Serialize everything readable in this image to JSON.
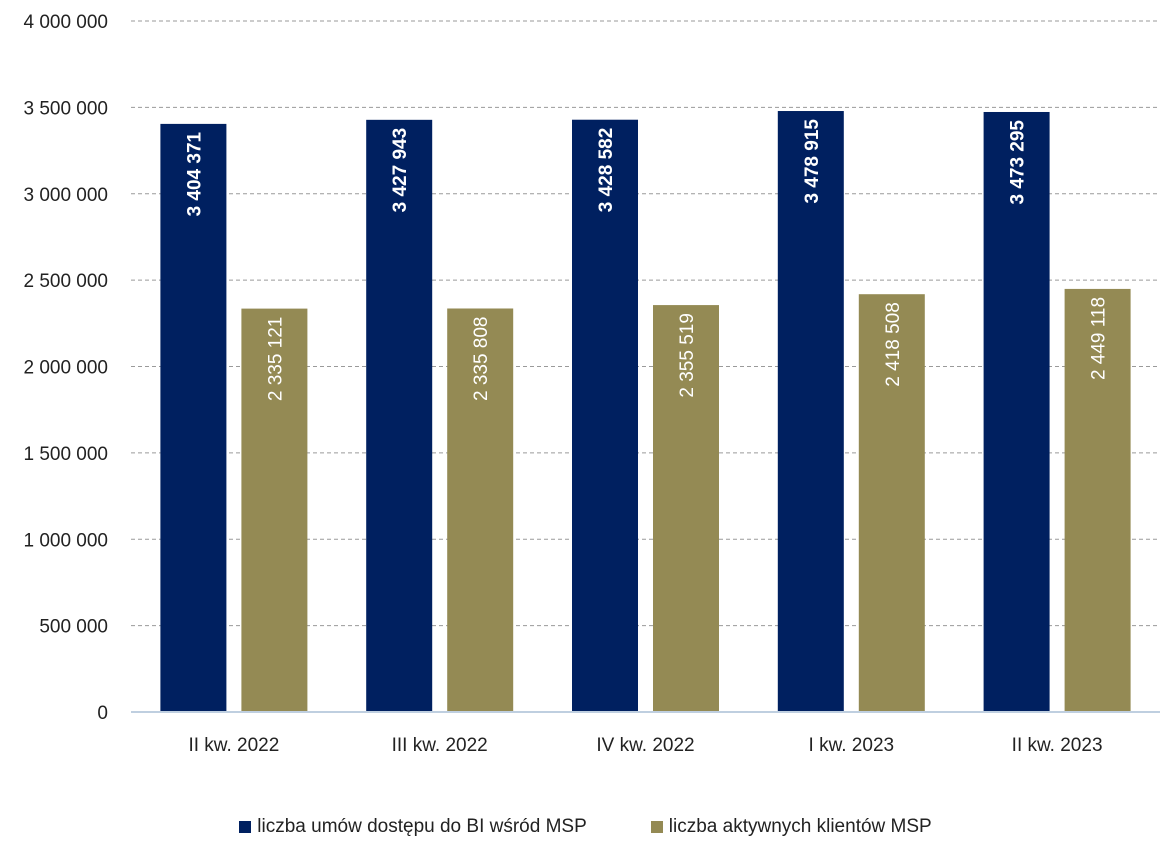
{
  "chart_data": {
    "type": "bar",
    "categories": [
      "II kw. 2022",
      "III kw. 2022",
      "IV kw. 2022",
      "I kw. 2023",
      "II kw. 2023"
    ],
    "series": [
      {
        "name": "liczba umów dostępu do BI wśród MSP",
        "color": "#002060",
        "values": [
          3404371,
          3427943,
          3428582,
          3478915,
          3473295
        ],
        "labels": [
          "3 404 371",
          "3 427 943",
          "3 428 582",
          "3 478 915",
          "3 473 295"
        ],
        "label_bold": true
      },
      {
        "name": "liczba aktywnych klientów MSP",
        "color": "#948A54",
        "values": [
          2335121,
          2335808,
          2355519,
          2418508,
          2449118
        ],
        "labels": [
          "2 335 121",
          "2 335 808",
          "2 355 519",
          "2 418 508",
          "2 449 118"
        ],
        "label_bold": false
      }
    ],
    "ylim": [
      0,
      4000000
    ],
    "yticks": [
      0,
      500000,
      1000000,
      1500000,
      2000000,
      2500000,
      3000000,
      3500000,
      4000000
    ],
    "ytick_labels": [
      "0",
      "500 000",
      "1 000 000",
      "1 500 000",
      "2 000 000",
      "2 500 000",
      "3 000 000",
      "3 500 000",
      "4 000 000"
    ],
    "grid": true,
    "grid_style": "dashed",
    "legend_position": "bottom"
  }
}
